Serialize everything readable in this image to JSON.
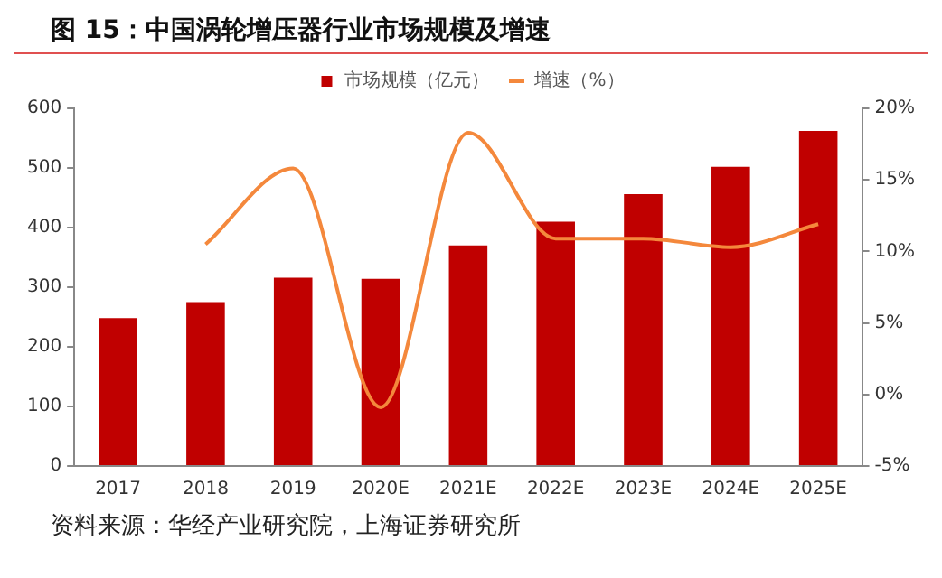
{
  "chart_data": {
    "type": "bar",
    "title": "图 15：中国涡轮增压器行业市场规模及增速",
    "categories": [
      "2017",
      "2018",
      "2019",
      "2020E",
      "2021E",
      "2022E",
      "2023E",
      "2024E",
      "2025E"
    ],
    "series": [
      {
        "name": "市场规模（亿元）",
        "color": "#c00000",
        "values": [
          248,
          275,
          316,
          314,
          370,
          410,
          456,
          502,
          562
        ]
      },
      {
        "name": "增速（%）",
        "type": "line",
        "axis": "y2",
        "color": "#f4883c",
        "values": [
          null,
          10.5,
          15.8,
          -0.9,
          18.3,
          10.9,
          10.9,
          10.3,
          11.9
        ]
      }
    ],
    "ylim": [
      0,
      600
    ],
    "yticks": [
      0,
      100,
      200,
      300,
      400,
      500,
      600
    ],
    "y2lim": [
      -5,
      20
    ],
    "y2ticks": [
      {
        "value": -5,
        "label": "-5%"
      },
      {
        "value": 0,
        "label": "0%"
      },
      {
        "value": 5,
        "label": "5%"
      },
      {
        "value": 10,
        "label": "10%"
      },
      {
        "value": 15,
        "label": "15%"
      },
      {
        "value": 20,
        "label": "20%"
      }
    ],
    "legend": "top",
    "grid": false,
    "marker": "none",
    "annotations": [
      "资料来源：华经产业研究院，上海证券研究所"
    ]
  }
}
